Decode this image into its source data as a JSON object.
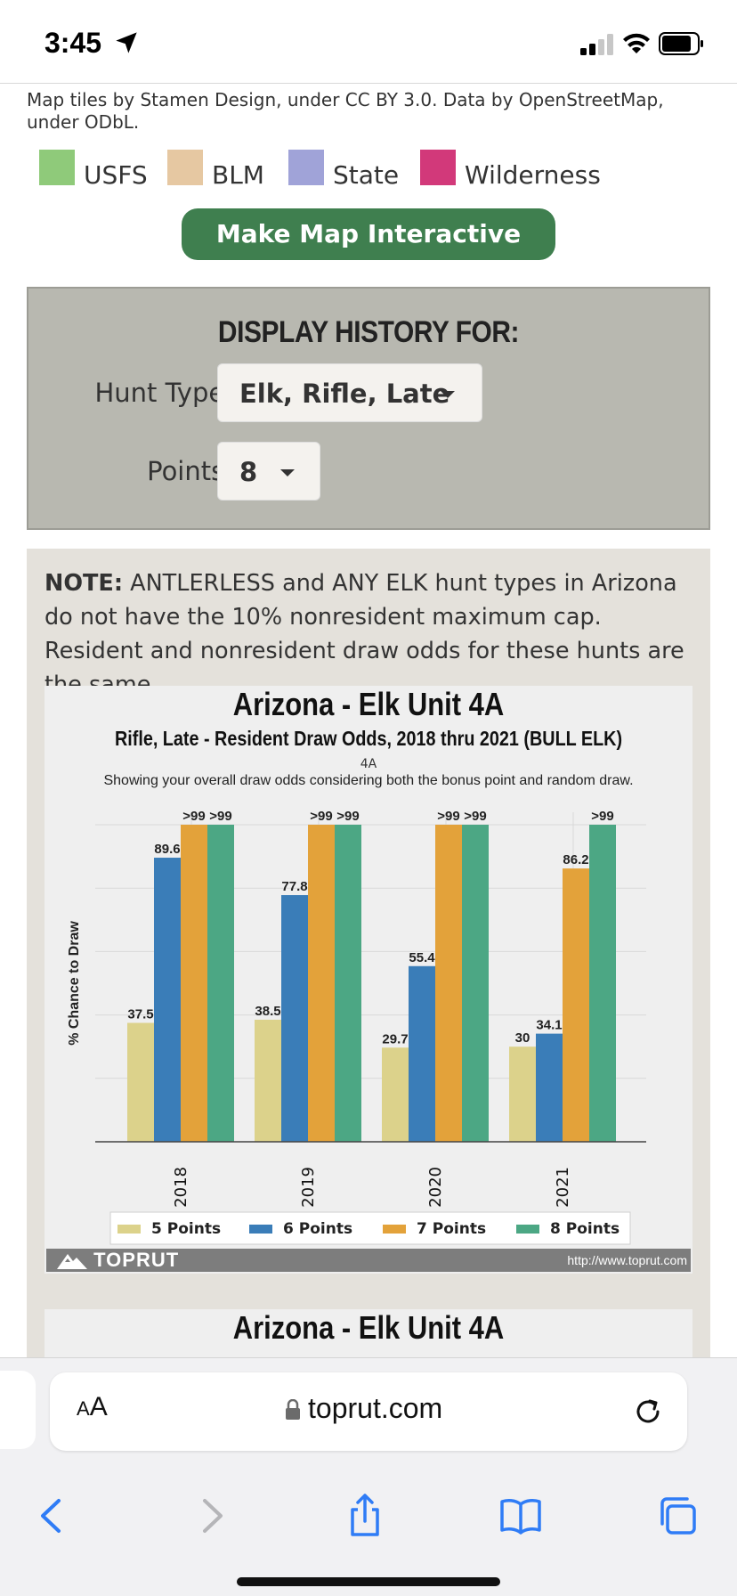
{
  "status_bar": {
    "time": "3:45"
  },
  "map": {
    "attribution": "Map tiles by Stamen Design, under CC BY 3.0. Data by OpenStreetMap, under ODbL.",
    "legend": [
      {
        "label": "USFS",
        "color": "#8fca7a"
      },
      {
        "label": "BLM",
        "color": "#e6c8a2"
      },
      {
        "label": "State",
        "color": "#a0a3d8"
      },
      {
        "label": "Wilderness",
        "color": "#d2397a"
      }
    ],
    "interactive_button": "Make Map Interactive"
  },
  "history": {
    "title": "DISPLAY HISTORY FOR:",
    "hunt_type_label": "Hunt Type:",
    "hunt_type_value": "Elk, Rifle, Late",
    "points_label": "Points:",
    "points_value": "8"
  },
  "note": {
    "bold": "NOTE:",
    "text": " ANTLERLESS and ANY ELK hunt types in Arizona do not have the 10% nonresident maximum cap. Resident and nonresident draw odds for these hunts are the same."
  },
  "chart_data": {
    "type": "bar",
    "title": "Arizona - Elk Unit 4A",
    "subtitle": "Rifle, Late - Resident Draw Odds, 2018 thru 2021 (BULL ELK)",
    "unit_label": "4A",
    "description": "Showing your overall draw odds considering both the bonus point and random draw.",
    "ylabel": "% Chance to Draw",
    "xlabel": "",
    "ylim": [
      0,
      100
    ],
    "grid": true,
    "legend_position": "bottom",
    "categories": [
      "2018",
      "2019",
      "2020",
      "2021"
    ],
    "series": [
      {
        "name": "5 Points",
        "color": "#dcd28b",
        "values": [
          37.5,
          38.5,
          29.7,
          30
        ],
        "labels": [
          "37.5",
          "38.5",
          "29.7",
          "30"
        ]
      },
      {
        "name": "6 Points",
        "color": "#3a7db8",
        "values": [
          89.6,
          77.8,
          55.4,
          34.1
        ],
        "labels": [
          "89.6",
          "77.8",
          "55.4",
          "34.1"
        ]
      },
      {
        "name": "7 Points",
        "color": "#e3a23a",
        "values": [
          100,
          100,
          100,
          86.2
        ],
        "labels": [
          ">99",
          ">99",
          ">99",
          "86.2"
        ]
      },
      {
        "name": "8 Points",
        "color": "#4ca784",
        "values": [
          100,
          100,
          100,
          100
        ],
        "labels": [
          ">99",
          ">99",
          ">99",
          ">99"
        ]
      }
    ],
    "brand": "TOPRUT",
    "brand_url": "http://www.toprut.com"
  },
  "next_chart": {
    "title": "Arizona - Elk Unit 4A"
  },
  "browser": {
    "text_size_label": "AA",
    "url": "toprut.com"
  }
}
